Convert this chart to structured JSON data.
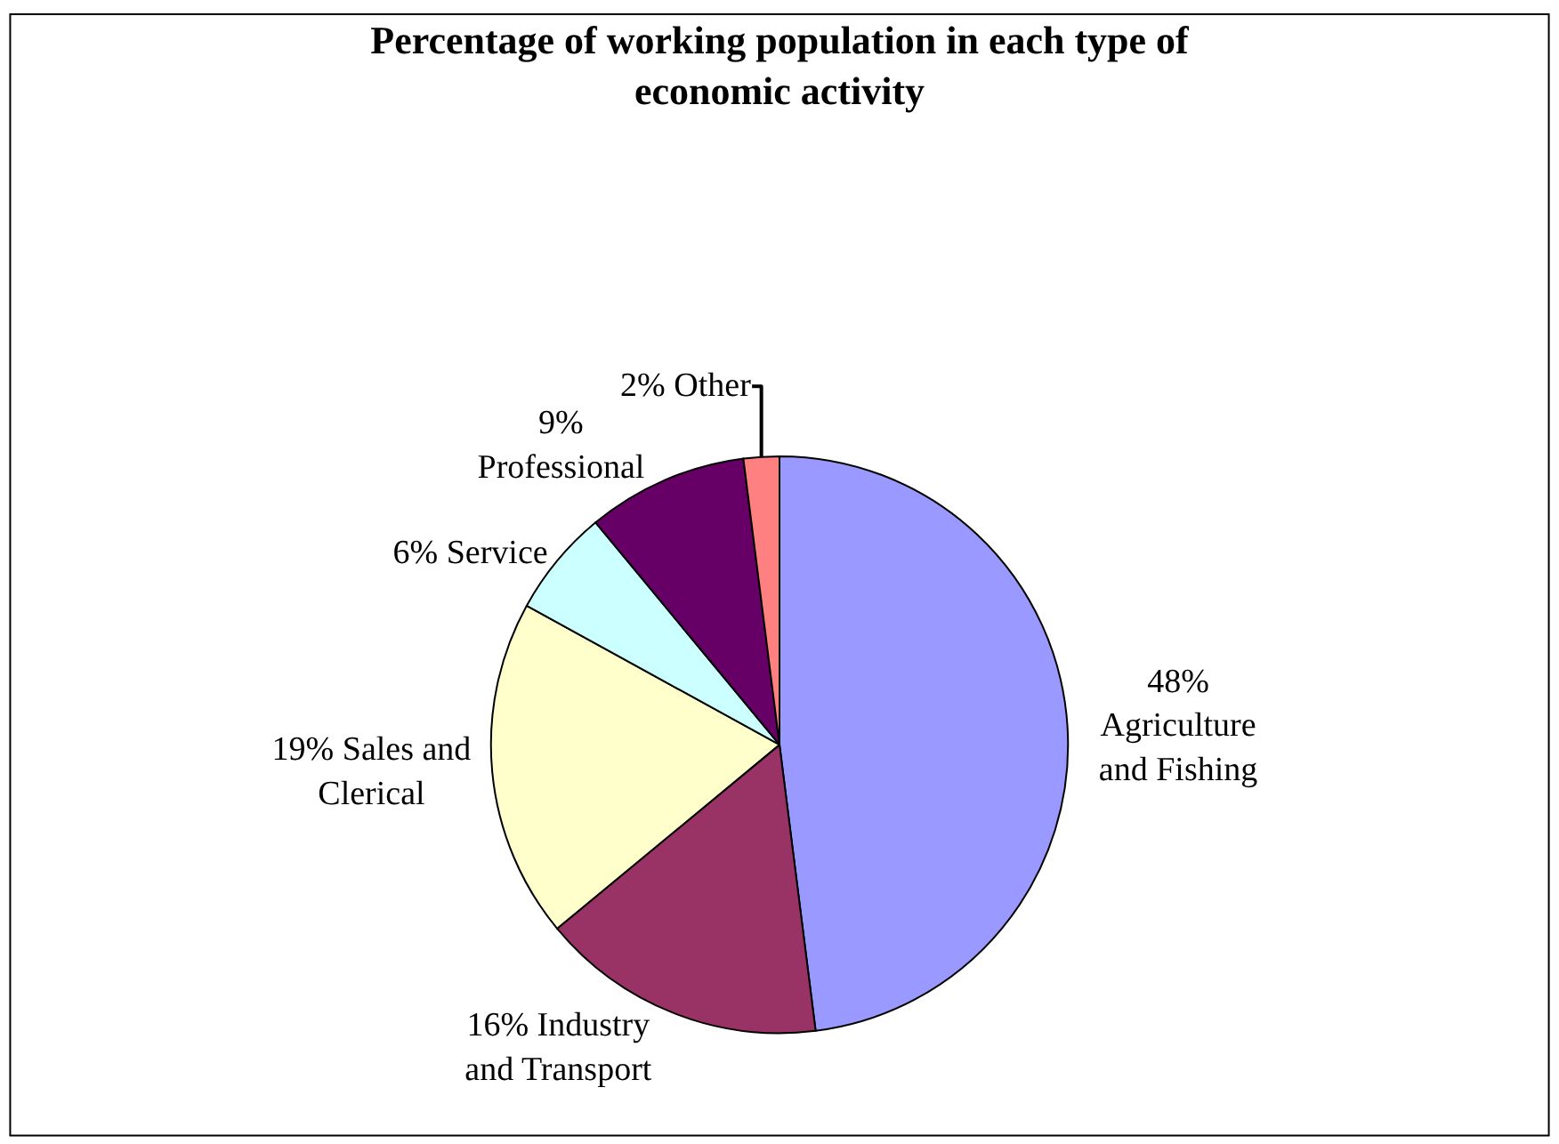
{
  "chart_data": {
    "type": "pie",
    "title": "Percentage of working population in each type of economic activity",
    "categories": [
      "Agriculture and Fishing",
      "Industry and Transport",
      "Sales and Clerical",
      "Service",
      "Professional",
      "Other"
    ],
    "values": [
      48,
      16,
      19,
      6,
      9,
      2
    ],
    "value_labels": [
      "48%",
      "16%",
      "19%",
      "6%",
      "9%",
      "2%"
    ],
    "colors": [
      "#9999ff",
      "#993366",
      "#ffffcc",
      "#ccffff",
      "#660066",
      "#ff8080"
    ],
    "legend": false
  }
}
